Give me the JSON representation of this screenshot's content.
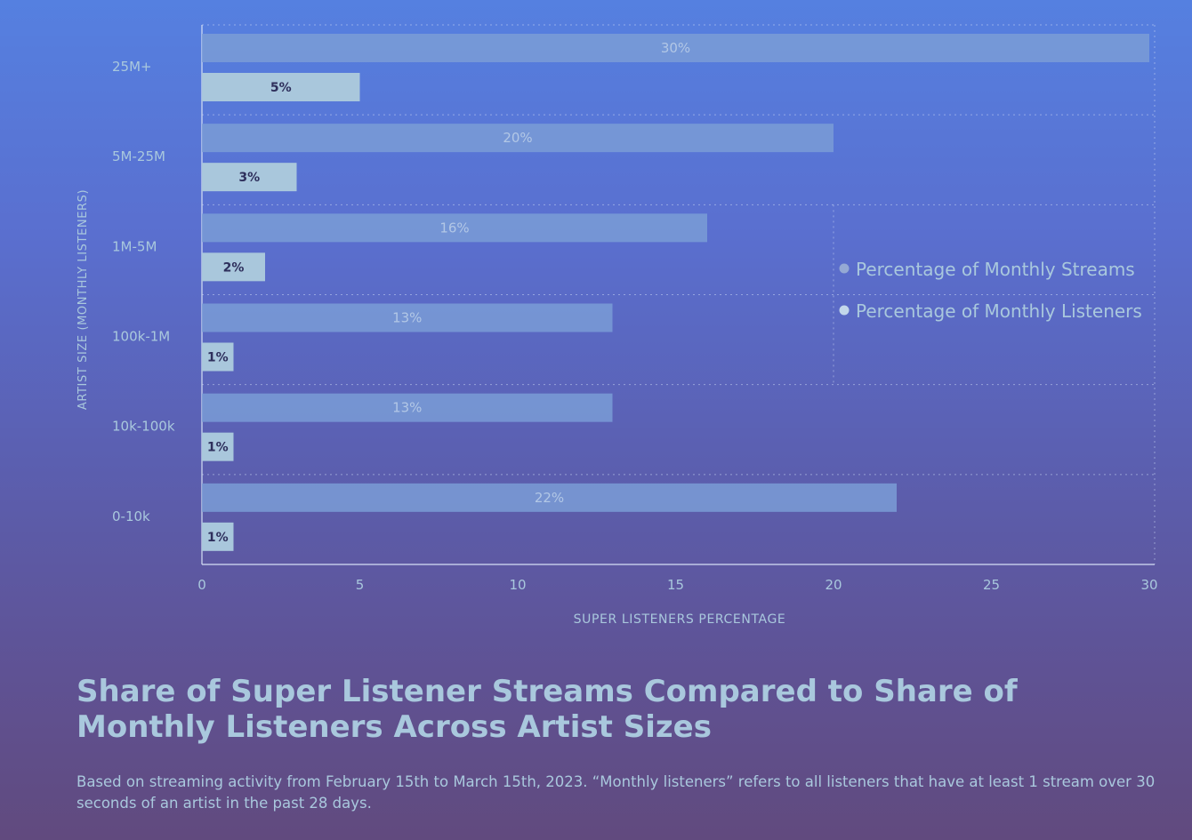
{
  "chart_data": {
    "type": "bar",
    "orientation": "horizontal",
    "categories": [
      "25M+",
      "5M-25M",
      "1M-5M",
      "100k-1M",
      "10k-100k",
      "0-10k"
    ],
    "series": [
      {
        "name": "Percentage of Monthly Streams",
        "values": [
          30,
          20,
          16,
          13,
          13,
          22
        ],
        "labels": [
          "30%",
          "20%",
          "16%",
          "13%",
          "13%",
          "22%"
        ],
        "color": "#7a9cd6"
      },
      {
        "name": "Percentage of Monthly Listeners",
        "values": [
          5,
          3,
          2,
          1,
          1,
          1
        ],
        "labels": [
          "5%",
          "3%",
          "2%",
          "1%",
          "1%",
          "1%"
        ],
        "color": "#a9c7dc"
      }
    ],
    "xlabel": "SUPER LISTENERS PERCENTAGE",
    "ylabel": "ARTIST SIZE (MONTHLY LISTENERS)",
    "xticks": [
      0,
      5,
      10,
      15,
      20,
      25,
      30
    ],
    "xlim": [
      0,
      30
    ],
    "legend": "right",
    "grid": "dotted"
  },
  "title": "Share of Super Listener Streams Compared to Share of Monthly Listeners Across Artist Sizes",
  "note": "Based on streaming activity from February 15th to March 15th, 2023. “Monthly listeners” refers to all listeners that have at least 1 stream over 30 seconds of an artist in the past 28 days.",
  "colors": {
    "text": "#a9c8dd",
    "label_dark": "#2e2f5c",
    "label_light": "#b2c7e6"
  }
}
